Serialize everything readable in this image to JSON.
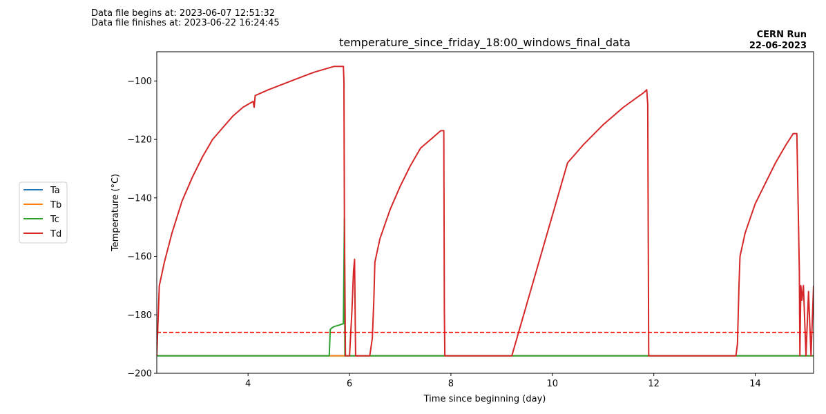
{
  "header": {
    "begins": "Data file begins at: 2023-06-07 12:51:32",
    "finishes": "Data file finishes at: 2023-06-22 16:24:45"
  },
  "chart_data": {
    "type": "line",
    "title": "temperature_since_friday_18:00_windows_final_data",
    "run_label": [
      "CERN Run",
      "22-06-2023"
    ],
    "xlabel": "Time since beginning (day)",
    "ylabel": "Temperature (°C)",
    "xlim": [
      2.2,
      15.15
    ],
    "ylim": [
      -200,
      -90
    ],
    "xticks": [
      4,
      6,
      8,
      10,
      12,
      14
    ],
    "yticks": [
      -200,
      -180,
      -160,
      -140,
      -120,
      -100
    ],
    "legend_position": "outside-left",
    "reference_line": {
      "y": -186,
      "color": "#ff0000",
      "style": "dashed"
    },
    "series": [
      {
        "name": "Ta",
        "color": "#1f77b4",
        "x": [
          2.2,
          5.6,
          5.75,
          5.9,
          15.15
        ],
        "y": [
          -194,
          -194,
          -194,
          -194,
          -194
        ]
      },
      {
        "name": "Tb",
        "color": "#ff7f0e",
        "x": [
          2.2,
          5.6,
          5.7,
          5.85,
          5.9,
          15.15
        ],
        "y": [
          -194,
          -194,
          -194,
          -194,
          -194,
          -194
        ]
      },
      {
        "name": "Tc",
        "color": "#2ca02c",
        "x": [
          2.2,
          5.6,
          5.62,
          5.65,
          5.7,
          5.8,
          5.88,
          5.9,
          5.91,
          5.93,
          15.15
        ],
        "y": [
          -194,
          -194,
          -185,
          -184.5,
          -184,
          -183.5,
          -183,
          -147,
          -194,
          -194,
          -194
        ]
      },
      {
        "name": "Td",
        "color": "#d62728",
        "x": [
          2.2,
          2.25,
          2.35,
          2.5,
          2.7,
          2.9,
          3.1,
          3.3,
          3.5,
          3.7,
          3.9,
          4.1,
          4.12,
          4.14,
          4.4,
          4.7,
          5.0,
          5.3,
          5.5,
          5.7,
          5.88,
          5.89,
          5.9,
          5.92,
          5.95,
          6.0,
          6.05,
          6.08,
          6.1,
          6.12,
          6.15,
          6.2,
          6.3,
          6.4,
          6.45,
          6.48,
          6.5,
          6.6,
          6.8,
          7.0,
          7.2,
          7.4,
          7.6,
          7.8,
          7.86,
          7.87,
          7.88,
          7.9,
          8.0,
          8.5,
          9.0,
          9.2,
          10.3,
          10.6,
          11.0,
          11.4,
          11.8,
          11.86,
          11.88,
          11.9,
          12.0,
          12.5,
          13.0,
          13.5,
          13.62,
          13.65,
          13.68,
          13.7,
          13.8,
          14.0,
          14.2,
          14.4,
          14.6,
          14.75,
          14.82,
          14.87,
          14.88,
          14.9,
          14.92,
          14.95,
          15.0,
          15.05,
          15.1,
          15.15
        ],
        "y": [
          -194,
          -170,
          -162,
          -152,
          -141,
          -133,
          -126,
          -120,
          -116,
          -112,
          -109,
          -107,
          -109,
          -105,
          -103,
          -101,
          -99,
          -97,
          -96,
          -95,
          -95,
          -100,
          -147,
          -194,
          -194,
          -194,
          -178,
          -165,
          -161,
          -194,
          -194,
          -194,
          -194,
          -194,
          -188,
          -175,
          -162,
          -154,
          -144,
          -136,
          -129,
          -123,
          -120,
          -117,
          -117,
          -178,
          -194,
          -194,
          -194,
          -194,
          -194,
          -194,
          -128,
          -122,
          -115,
          -109,
          -104,
          -103,
          -108,
          -194,
          -194,
          -194,
          -194,
          -194,
          -194,
          -190,
          -170,
          -160,
          -152,
          -142,
          -135,
          -128,
          -122,
          -118,
          -118,
          -165,
          -194,
          -170,
          -175,
          -170,
          -194,
          -172,
          -194,
          -170
        ]
      }
    ]
  }
}
